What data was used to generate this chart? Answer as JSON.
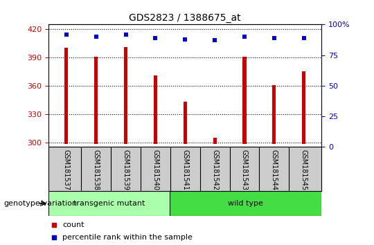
{
  "title": "GDS2823 / 1388675_at",
  "samples": [
    "GSM181537",
    "GSM181538",
    "GSM181539",
    "GSM181540",
    "GSM181541",
    "GSM181542",
    "GSM181543",
    "GSM181544",
    "GSM181545"
  ],
  "counts": [
    400,
    391,
    401,
    371,
    343,
    305,
    391,
    361,
    375
  ],
  "percentile_ranks": [
    92,
    90,
    92,
    89,
    88,
    87,
    90,
    89,
    89
  ],
  "ylim_left": [
    295,
    425
  ],
  "yticks_left": [
    300,
    330,
    360,
    390,
    420
  ],
  "ylim_right": [
    0,
    100
  ],
  "yticks_right": [
    0,
    25,
    50,
    75,
    100
  ],
  "ytick_right_labels": [
    "0",
    "25",
    "50",
    "75",
    "100%"
  ],
  "bar_color": "#cc0000",
  "dot_color": "#0000cc",
  "bar_baseline": 298,
  "bar_width": 0.12,
  "groups": [
    {
      "label": "transgenic mutant",
      "indices": [
        0,
        1,
        2,
        3
      ],
      "color": "#aaffaa"
    },
    {
      "label": "wild type",
      "indices": [
        4,
        5,
        6,
        7,
        8
      ],
      "color": "#44dd44"
    }
  ],
  "group_label": "genotype/variation",
  "legend_count_label": "count",
  "legend_pct_label": "percentile rank within the sample",
  "bg_color": "#ffffff",
  "tick_bg_color": "#cccccc"
}
